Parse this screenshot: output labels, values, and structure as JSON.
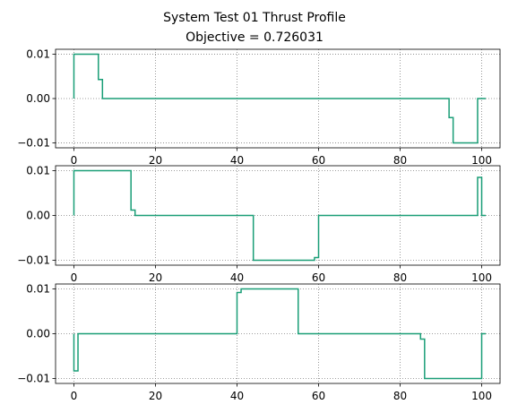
{
  "figure": {
    "title_line1": "System Test 01 Thrust Profile",
    "title_line2": "Objective = 0.726031",
    "line_color": "#1a9e77",
    "grid_color": "#808080"
  },
  "chart_data": [
    {
      "type": "line",
      "step": "post",
      "grid": true,
      "xlim": [
        -4.5,
        104.5
      ],
      "ylim": [
        -0.0111,
        0.0111
      ],
      "xticks": [
        0,
        20,
        40,
        60,
        80,
        100
      ],
      "yticks": [
        0.01,
        0.0,
        -0.01
      ],
      "ytick_labels": [
        "0.01",
        "0.00",
        "−0.01"
      ],
      "series": [
        {
          "x": [
            0,
            0,
            6,
            7,
            92,
            93,
            99,
            100,
            101
          ],
          "y": [
            0.0,
            0.01,
            0.0043,
            0.0,
            -0.0043,
            -0.01,
            0.0,
            0.0,
            0.0
          ]
        }
      ]
    },
    {
      "type": "line",
      "step": "post",
      "grid": true,
      "xlim": [
        -4.5,
        104.5
      ],
      "ylim": [
        -0.0111,
        0.0111
      ],
      "xticks": [
        0,
        20,
        40,
        60,
        80,
        100
      ],
      "yticks": [
        0.01,
        0.0,
        -0.01
      ],
      "ytick_labels": [
        "0.01",
        "0.00",
        "−0.01"
      ],
      "series": [
        {
          "x": [
            0,
            0,
            14,
            15,
            44,
            59,
            60,
            99,
            100,
            101
          ],
          "y": [
            0.0,
            0.01,
            0.0012,
            0.0,
            -0.01,
            -0.0094,
            0.0,
            0.0085,
            0.0,
            0.0
          ]
        }
      ]
    },
    {
      "type": "line",
      "step": "post",
      "grid": true,
      "xlim": [
        -4.5,
        104.5
      ],
      "ylim": [
        -0.0111,
        0.0111
      ],
      "xticks": [
        0,
        20,
        40,
        60,
        80,
        100
      ],
      "yticks": [
        0.01,
        0.0,
        -0.01
      ],
      "ytick_labels": [
        "0.01",
        "0.00",
        "−0.01"
      ],
      "series": [
        {
          "x": [
            0,
            0,
            1,
            40,
            41,
            55,
            85,
            86,
            100,
            101
          ],
          "y": [
            0.0,
            -0.0083,
            0.0,
            0.0092,
            0.01,
            0.0,
            -0.0012,
            -0.01,
            0.0,
            0.0
          ]
        }
      ]
    }
  ]
}
